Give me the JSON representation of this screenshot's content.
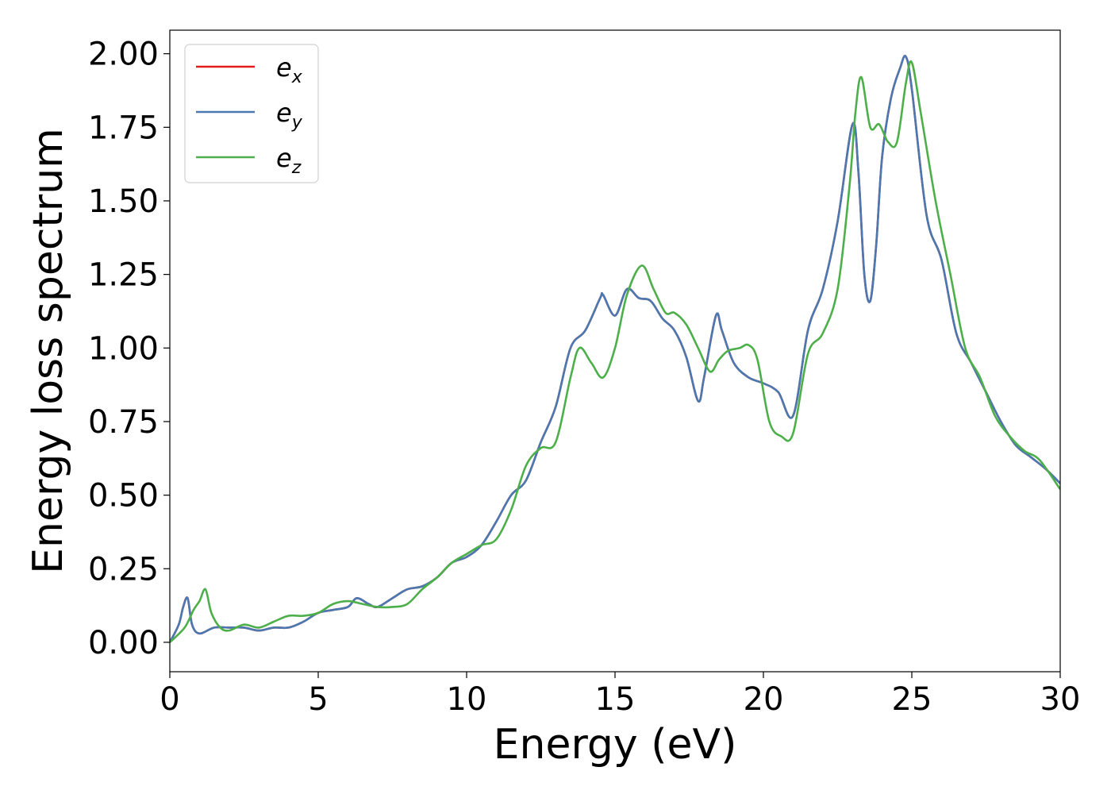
{
  "chart_data": {
    "type": "line",
    "xlabel": "Energy (eV)",
    "ylabel": "Energy loss spectrum",
    "xlim": [
      0,
      30
    ],
    "ylim": [
      -0.1,
      2.08
    ],
    "xticks": [
      0,
      5,
      10,
      15,
      20,
      25,
      30
    ],
    "xtick_labels": [
      "0",
      "5",
      "10",
      "15",
      "20",
      "25",
      "30"
    ],
    "yticks": [
      0,
      0.25,
      0.5,
      0.75,
      1.0,
      1.25,
      1.5,
      1.75,
      2.0
    ],
    "ytick_labels": [
      "0.00",
      "0.25",
      "0.50",
      "0.75",
      "1.00",
      "1.25",
      "1.50",
      "1.75",
      "2.00"
    ],
    "grid": false,
    "legend_position": "top-left",
    "series": [
      {
        "name": "e_x",
        "label_main": "e",
        "label_sub": "x",
        "color": "#e41a1c",
        "x": [
          0,
          0.3,
          0.45,
          0.6,
          0.75,
          1.0,
          1.5,
          2.0,
          2.5,
          3.0,
          3.5,
          4.0,
          4.5,
          5.0,
          5.5,
          6.0,
          6.3,
          6.7,
          7.0,
          7.5,
          8.0,
          8.5,
          9.0,
          9.5,
          10.0,
          10.5,
          11.0,
          11.5,
          12.0,
          12.5,
          13.0,
          13.5,
          14.0,
          14.5,
          14.6,
          15.0,
          15.4,
          15.8,
          16.2,
          16.6,
          17.0,
          17.4,
          17.8,
          18.0,
          18.4,
          18.6,
          19.0,
          19.5,
          20.0,
          20.5,
          21.0,
          21.5,
          22.0,
          22.5,
          23.0,
          23.2,
          23.4,
          23.6,
          23.8,
          24.0,
          24.3,
          24.6,
          24.8,
          25.0,
          25.5,
          26.0,
          26.5,
          27.0,
          27.5,
          28.0,
          28.5,
          29.0,
          29.5,
          30.0
        ],
        "y": [
          0.0,
          0.06,
          0.12,
          0.15,
          0.06,
          0.03,
          0.05,
          0.05,
          0.05,
          0.04,
          0.05,
          0.05,
          0.07,
          0.1,
          0.11,
          0.12,
          0.15,
          0.13,
          0.12,
          0.15,
          0.18,
          0.19,
          0.22,
          0.27,
          0.29,
          0.33,
          0.41,
          0.5,
          0.55,
          0.68,
          0.8,
          1.0,
          1.06,
          1.17,
          1.18,
          1.11,
          1.2,
          1.17,
          1.16,
          1.1,
          1.06,
          0.97,
          0.82,
          0.9,
          1.11,
          1.06,
          0.95,
          0.9,
          0.88,
          0.85,
          0.77,
          1.06,
          1.2,
          1.43,
          1.76,
          1.6,
          1.25,
          1.16,
          1.35,
          1.65,
          1.85,
          1.95,
          1.99,
          1.88,
          1.45,
          1.3,
          1.05,
          0.95,
          0.85,
          0.75,
          0.67,
          0.63,
          0.59,
          0.54
        ]
      },
      {
        "name": "e_y",
        "label_main": "e",
        "label_sub": "y",
        "color": "#4a78b0",
        "x": [
          0,
          0.3,
          0.45,
          0.6,
          0.75,
          1.0,
          1.5,
          2.0,
          2.5,
          3.0,
          3.5,
          4.0,
          4.5,
          5.0,
          5.5,
          6.0,
          6.3,
          6.7,
          7.0,
          7.5,
          8.0,
          8.5,
          9.0,
          9.5,
          10.0,
          10.5,
          11.0,
          11.5,
          12.0,
          12.5,
          13.0,
          13.5,
          14.0,
          14.5,
          14.6,
          15.0,
          15.4,
          15.8,
          16.2,
          16.6,
          17.0,
          17.4,
          17.8,
          18.0,
          18.4,
          18.6,
          19.0,
          19.5,
          20.0,
          20.5,
          21.0,
          21.5,
          22.0,
          22.5,
          23.0,
          23.2,
          23.4,
          23.6,
          23.8,
          24.0,
          24.3,
          24.6,
          24.8,
          25.0,
          25.5,
          26.0,
          26.5,
          27.0,
          27.5,
          28.0,
          28.5,
          29.0,
          29.5,
          30.0
        ],
        "y": [
          0.0,
          0.06,
          0.12,
          0.15,
          0.06,
          0.03,
          0.05,
          0.05,
          0.05,
          0.04,
          0.05,
          0.05,
          0.07,
          0.1,
          0.11,
          0.12,
          0.15,
          0.13,
          0.12,
          0.15,
          0.18,
          0.19,
          0.22,
          0.27,
          0.29,
          0.33,
          0.41,
          0.5,
          0.55,
          0.68,
          0.8,
          1.0,
          1.06,
          1.17,
          1.18,
          1.11,
          1.2,
          1.17,
          1.16,
          1.1,
          1.06,
          0.97,
          0.82,
          0.9,
          1.11,
          1.06,
          0.95,
          0.9,
          0.88,
          0.85,
          0.77,
          1.06,
          1.2,
          1.43,
          1.76,
          1.6,
          1.25,
          1.16,
          1.35,
          1.65,
          1.85,
          1.95,
          1.99,
          1.88,
          1.45,
          1.3,
          1.05,
          0.95,
          0.85,
          0.75,
          0.67,
          0.63,
          0.59,
          0.54
        ]
      },
      {
        "name": "e_z",
        "label_main": "e",
        "label_sub": "z",
        "color": "#4daf4a",
        "x": [
          0,
          0.5,
          0.8,
          1.0,
          1.2,
          1.4,
          1.7,
          2.0,
          2.5,
          3.0,
          3.5,
          4.0,
          4.5,
          5.0,
          5.5,
          6.0,
          6.5,
          7.0,
          7.5,
          8.0,
          8.5,
          9.0,
          9.5,
          10.0,
          10.5,
          11.0,
          11.5,
          12.0,
          12.5,
          13.0,
          13.5,
          13.8,
          14.2,
          14.6,
          15.0,
          15.4,
          15.9,
          16.3,
          16.7,
          17.0,
          17.4,
          17.8,
          18.2,
          18.5,
          18.8,
          19.2,
          19.5,
          19.8,
          20.2,
          20.6,
          21.0,
          21.5,
          22.0,
          22.5,
          22.9,
          23.1,
          23.3,
          23.6,
          23.9,
          24.2,
          24.5,
          24.8,
          25.0,
          25.3,
          25.8,
          26.3,
          26.8,
          27.3,
          27.8,
          28.3,
          28.8,
          29.3,
          30.0
        ],
        "y": [
          0.0,
          0.05,
          0.11,
          0.14,
          0.18,
          0.1,
          0.05,
          0.04,
          0.06,
          0.05,
          0.07,
          0.09,
          0.09,
          0.1,
          0.13,
          0.14,
          0.13,
          0.12,
          0.12,
          0.13,
          0.18,
          0.22,
          0.27,
          0.3,
          0.33,
          0.35,
          0.45,
          0.6,
          0.66,
          0.68,
          0.9,
          1.0,
          0.95,
          0.9,
          1.0,
          1.18,
          1.28,
          1.2,
          1.12,
          1.12,
          1.08,
          1.0,
          0.92,
          0.96,
          0.99,
          1.0,
          1.01,
          0.96,
          0.75,
          0.7,
          0.71,
          0.98,
          1.05,
          1.2,
          1.55,
          1.8,
          1.92,
          1.75,
          1.76,
          1.7,
          1.7,
          1.9,
          1.97,
          1.8,
          1.5,
          1.25,
          1.0,
          0.9,
          0.77,
          0.7,
          0.65,
          0.62,
          0.52
        ]
      }
    ]
  }
}
